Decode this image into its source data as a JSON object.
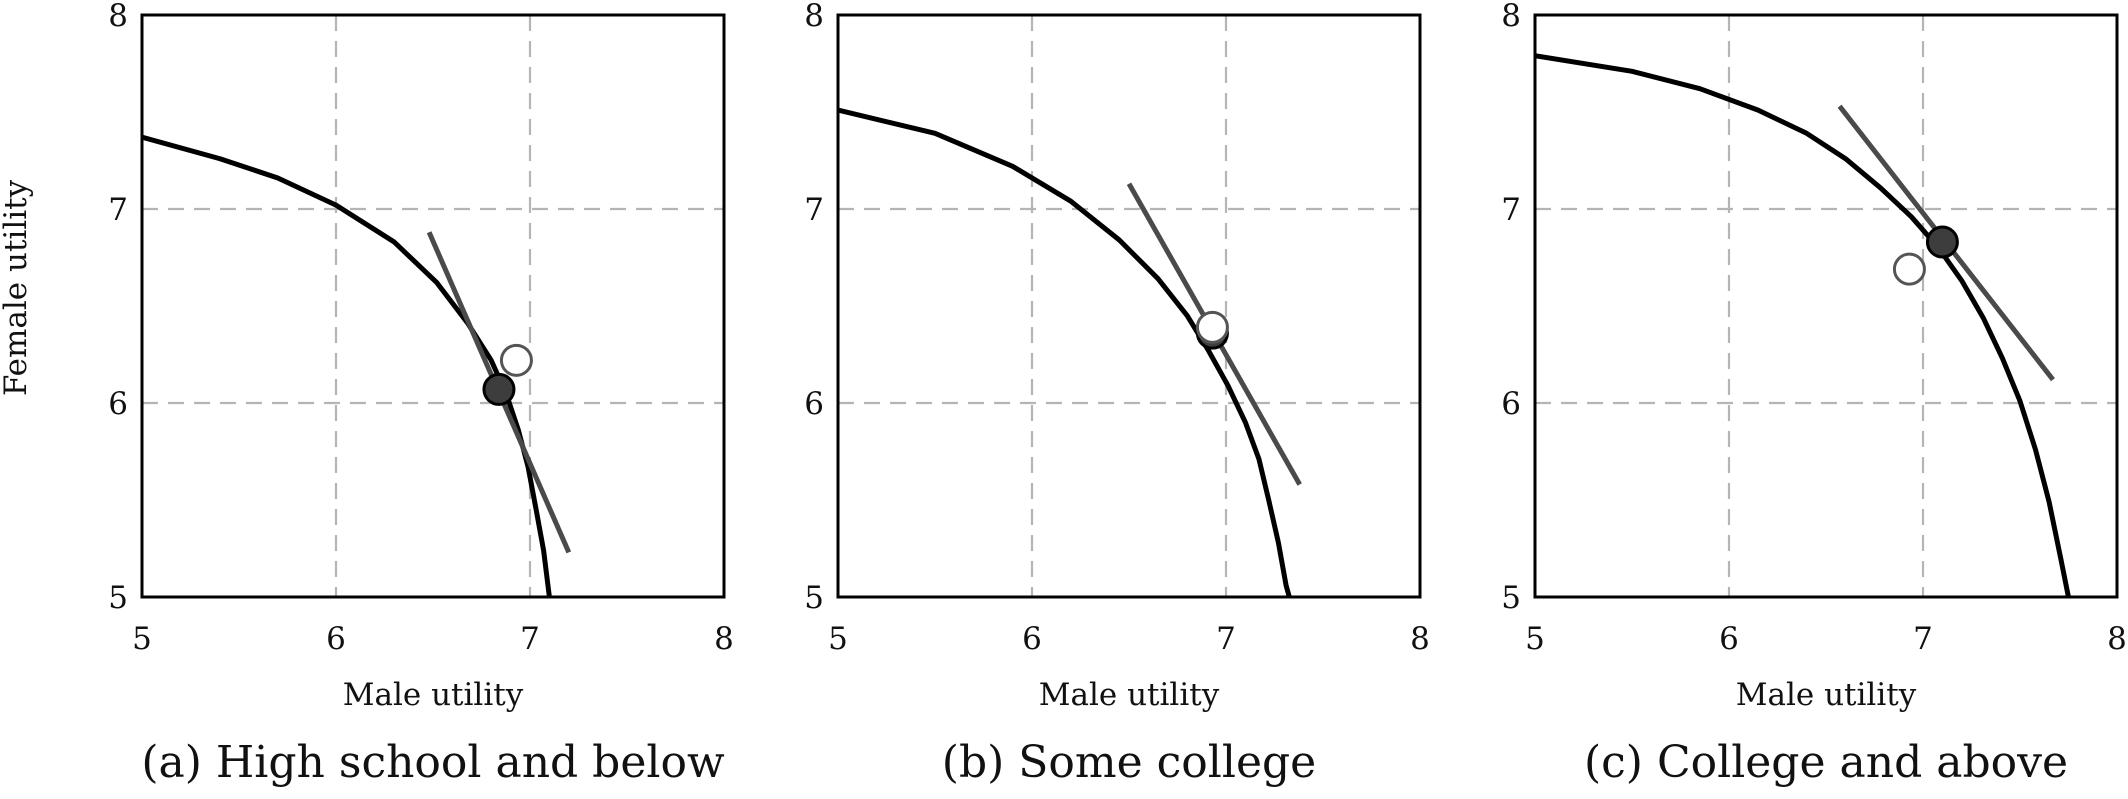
{
  "figure": {
    "ylabel": "Female utility"
  },
  "chart_data": [
    {
      "type": "line",
      "caption": "(a) High school and below",
      "xlabel": "Male utility",
      "ylabel": "Female utility",
      "xlim": [
        5,
        8
      ],
      "ylim": [
        5,
        8
      ],
      "xticks": [
        5,
        6,
        7,
        8
      ],
      "yticks": [
        5,
        6,
        7,
        8
      ],
      "grid": true,
      "grid_style": "dashed",
      "frontier": {
        "x": [
          5.0,
          5.4,
          5.7,
          6.0,
          6.3,
          6.52,
          6.68,
          6.8,
          6.88,
          6.94,
          6.99,
          7.03,
          7.07,
          7.1,
          7.12
        ],
        "y": [
          7.37,
          7.26,
          7.16,
          7.02,
          6.83,
          6.62,
          6.41,
          6.22,
          6.04,
          5.86,
          5.67,
          5.46,
          5.24,
          5.0,
          4.9
        ]
      },
      "tangent_line": {
        "x": [
          6.48,
          7.2
        ],
        "y": [
          6.88,
          5.23
        ]
      },
      "filled_point": {
        "x": 6.84,
        "y": 6.07
      },
      "hollow_point": {
        "x": 6.93,
        "y": 6.22
      },
      "colors": {
        "frontier": "#000000",
        "tangent": "#4a4a4a",
        "filled_point": "#3d3d3d",
        "grid": "#b5b5b5"
      }
    },
    {
      "type": "line",
      "caption": "(b) Some college",
      "xlabel": "Male utility",
      "ylabel": "",
      "xlim": [
        5,
        8
      ],
      "ylim": [
        5,
        8
      ],
      "xticks": [
        5,
        6,
        7,
        8
      ],
      "yticks": [
        5,
        6,
        7,
        8
      ],
      "grid": true,
      "grid_style": "dashed",
      "frontier": {
        "x": [
          5.0,
          5.5,
          5.9,
          6.2,
          6.45,
          6.65,
          6.8,
          6.91,
          7.01,
          7.1,
          7.17,
          7.22,
          7.27,
          7.31,
          7.34,
          7.36
        ],
        "y": [
          7.51,
          7.39,
          7.22,
          7.04,
          6.84,
          6.64,
          6.45,
          6.27,
          6.09,
          5.9,
          5.71,
          5.5,
          5.28,
          5.06,
          4.95,
          4.9
        ]
      },
      "tangent_line": {
        "x": [
          6.5,
          7.38
        ],
        "y": [
          7.13,
          5.58
        ]
      },
      "filled_point": {
        "x": 6.93,
        "y": 6.36
      },
      "hollow_point": {
        "x": 6.93,
        "y": 6.39
      },
      "colors": {
        "frontier": "#000000",
        "tangent": "#4a4a4a",
        "filled_point": "#3d3d3d",
        "grid": "#b5b5b5"
      }
    },
    {
      "type": "line",
      "caption": "(c) College and above",
      "xlabel": "Male utility",
      "ylabel": "",
      "xlim": [
        5,
        8
      ],
      "ylim": [
        5,
        8
      ],
      "xticks": [
        5,
        6,
        7,
        8
      ],
      "yticks": [
        5,
        6,
        7,
        8
      ],
      "grid": true,
      "grid_style": "dashed",
      "frontier": {
        "x": [
          5.0,
          5.5,
          5.85,
          6.15,
          6.4,
          6.6,
          6.78,
          6.94,
          7.08,
          7.2,
          7.31,
          7.41,
          7.5,
          7.58,
          7.65,
          7.71,
          7.76,
          7.78
        ],
        "y": [
          7.79,
          7.71,
          7.62,
          7.51,
          7.39,
          7.26,
          7.11,
          6.96,
          6.8,
          6.63,
          6.44,
          6.23,
          6.01,
          5.76,
          5.49,
          5.2,
          4.95,
          4.9
        ]
      },
      "tangent_line": {
        "x": [
          6.57,
          7.67
        ],
        "y": [
          7.53,
          6.12
        ]
      },
      "filled_point": {
        "x": 7.1,
        "y": 6.83
      },
      "hollow_point": {
        "x": 6.93,
        "y": 6.69
      },
      "colors": {
        "frontier": "#000000",
        "tangent": "#4a4a4a",
        "filled_point": "#3d3d3d",
        "grid": "#b5b5b5"
      }
    }
  ]
}
